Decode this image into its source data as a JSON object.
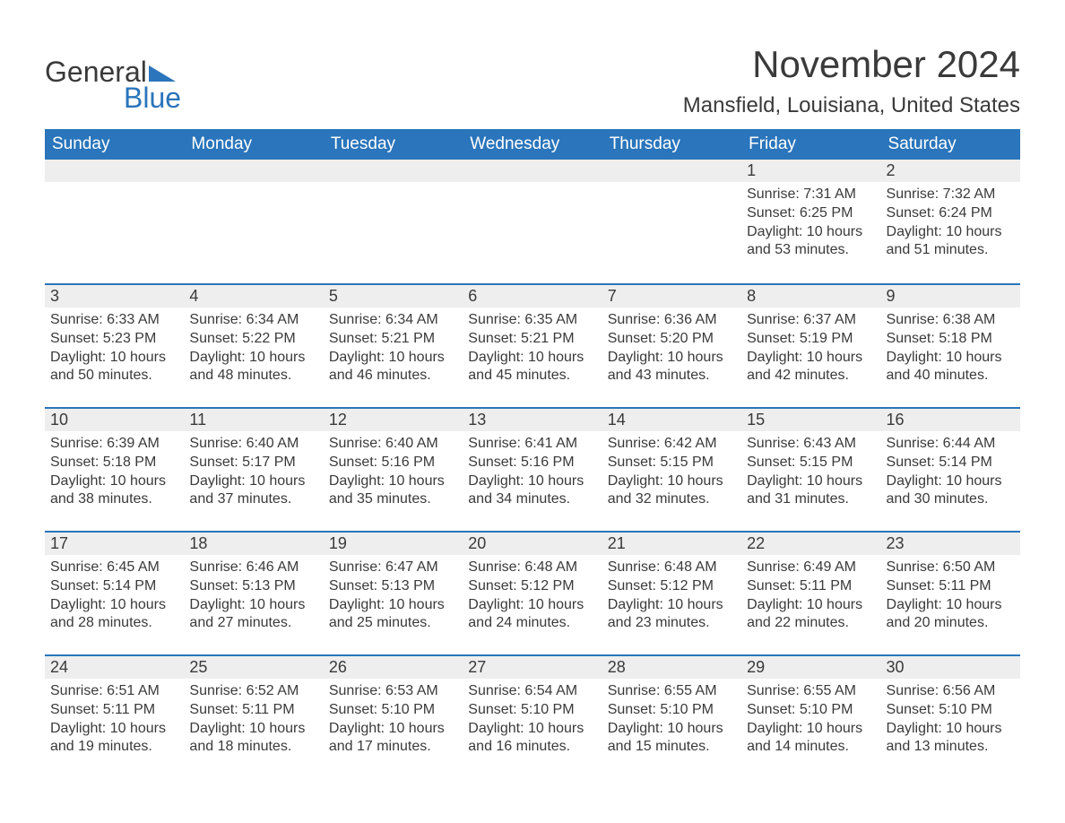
{
  "logo": {
    "general": "General",
    "blue": "Blue"
  },
  "month_title": "November 2024",
  "location": "Mansfield, Louisiana, United States",
  "colors": {
    "header_bg": "#2a75bb",
    "header_text": "#ffffff",
    "daynum_bg": "#eeeeee",
    "daynum_border": "#2a75bb",
    "text": "#3a3a3a",
    "page_bg": "#ffffff"
  },
  "day_headers": [
    "Sunday",
    "Monday",
    "Tuesday",
    "Wednesday",
    "Thursday",
    "Friday",
    "Saturday"
  ],
  "weeks": [
    [
      null,
      null,
      null,
      null,
      null,
      {
        "n": "1",
        "sunrise": "Sunrise: 7:31 AM",
        "sunset": "Sunset: 6:25 PM",
        "daylight": "Daylight: 10 hours and 53 minutes."
      },
      {
        "n": "2",
        "sunrise": "Sunrise: 7:32 AM",
        "sunset": "Sunset: 6:24 PM",
        "daylight": "Daylight: 10 hours and 51 minutes."
      }
    ],
    [
      {
        "n": "3",
        "sunrise": "Sunrise: 6:33 AM",
        "sunset": "Sunset: 5:23 PM",
        "daylight": "Daylight: 10 hours and 50 minutes."
      },
      {
        "n": "4",
        "sunrise": "Sunrise: 6:34 AM",
        "sunset": "Sunset: 5:22 PM",
        "daylight": "Daylight: 10 hours and 48 minutes."
      },
      {
        "n": "5",
        "sunrise": "Sunrise: 6:34 AM",
        "sunset": "Sunset: 5:21 PM",
        "daylight": "Daylight: 10 hours and 46 minutes."
      },
      {
        "n": "6",
        "sunrise": "Sunrise: 6:35 AM",
        "sunset": "Sunset: 5:21 PM",
        "daylight": "Daylight: 10 hours and 45 minutes."
      },
      {
        "n": "7",
        "sunrise": "Sunrise: 6:36 AM",
        "sunset": "Sunset: 5:20 PM",
        "daylight": "Daylight: 10 hours and 43 minutes."
      },
      {
        "n": "8",
        "sunrise": "Sunrise: 6:37 AM",
        "sunset": "Sunset: 5:19 PM",
        "daylight": "Daylight: 10 hours and 42 minutes."
      },
      {
        "n": "9",
        "sunrise": "Sunrise: 6:38 AM",
        "sunset": "Sunset: 5:18 PM",
        "daylight": "Daylight: 10 hours and 40 minutes."
      }
    ],
    [
      {
        "n": "10",
        "sunrise": "Sunrise: 6:39 AM",
        "sunset": "Sunset: 5:18 PM",
        "daylight": "Daylight: 10 hours and 38 minutes."
      },
      {
        "n": "11",
        "sunrise": "Sunrise: 6:40 AM",
        "sunset": "Sunset: 5:17 PM",
        "daylight": "Daylight: 10 hours and 37 minutes."
      },
      {
        "n": "12",
        "sunrise": "Sunrise: 6:40 AM",
        "sunset": "Sunset: 5:16 PM",
        "daylight": "Daylight: 10 hours and 35 minutes."
      },
      {
        "n": "13",
        "sunrise": "Sunrise: 6:41 AM",
        "sunset": "Sunset: 5:16 PM",
        "daylight": "Daylight: 10 hours and 34 minutes."
      },
      {
        "n": "14",
        "sunrise": "Sunrise: 6:42 AM",
        "sunset": "Sunset: 5:15 PM",
        "daylight": "Daylight: 10 hours and 32 minutes."
      },
      {
        "n": "15",
        "sunrise": "Sunrise: 6:43 AM",
        "sunset": "Sunset: 5:15 PM",
        "daylight": "Daylight: 10 hours and 31 minutes."
      },
      {
        "n": "16",
        "sunrise": "Sunrise: 6:44 AM",
        "sunset": "Sunset: 5:14 PM",
        "daylight": "Daylight: 10 hours and 30 minutes."
      }
    ],
    [
      {
        "n": "17",
        "sunrise": "Sunrise: 6:45 AM",
        "sunset": "Sunset: 5:14 PM",
        "daylight": "Daylight: 10 hours and 28 minutes."
      },
      {
        "n": "18",
        "sunrise": "Sunrise: 6:46 AM",
        "sunset": "Sunset: 5:13 PM",
        "daylight": "Daylight: 10 hours and 27 minutes."
      },
      {
        "n": "19",
        "sunrise": "Sunrise: 6:47 AM",
        "sunset": "Sunset: 5:13 PM",
        "daylight": "Daylight: 10 hours and 25 minutes."
      },
      {
        "n": "20",
        "sunrise": "Sunrise: 6:48 AM",
        "sunset": "Sunset: 5:12 PM",
        "daylight": "Daylight: 10 hours and 24 minutes."
      },
      {
        "n": "21",
        "sunrise": "Sunrise: 6:48 AM",
        "sunset": "Sunset: 5:12 PM",
        "daylight": "Daylight: 10 hours and 23 minutes."
      },
      {
        "n": "22",
        "sunrise": "Sunrise: 6:49 AM",
        "sunset": "Sunset: 5:11 PM",
        "daylight": "Daylight: 10 hours and 22 minutes."
      },
      {
        "n": "23",
        "sunrise": "Sunrise: 6:50 AM",
        "sunset": "Sunset: 5:11 PM",
        "daylight": "Daylight: 10 hours and 20 minutes."
      }
    ],
    [
      {
        "n": "24",
        "sunrise": "Sunrise: 6:51 AM",
        "sunset": "Sunset: 5:11 PM",
        "daylight": "Daylight: 10 hours and 19 minutes."
      },
      {
        "n": "25",
        "sunrise": "Sunrise: 6:52 AM",
        "sunset": "Sunset: 5:11 PM",
        "daylight": "Daylight: 10 hours and 18 minutes."
      },
      {
        "n": "26",
        "sunrise": "Sunrise: 6:53 AM",
        "sunset": "Sunset: 5:10 PM",
        "daylight": "Daylight: 10 hours and 17 minutes."
      },
      {
        "n": "27",
        "sunrise": "Sunrise: 6:54 AM",
        "sunset": "Sunset: 5:10 PM",
        "daylight": "Daylight: 10 hours and 16 minutes."
      },
      {
        "n": "28",
        "sunrise": "Sunrise: 6:55 AM",
        "sunset": "Sunset: 5:10 PM",
        "daylight": "Daylight: 10 hours and 15 minutes."
      },
      {
        "n": "29",
        "sunrise": "Sunrise: 6:55 AM",
        "sunset": "Sunset: 5:10 PM",
        "daylight": "Daylight: 10 hours and 14 minutes."
      },
      {
        "n": "30",
        "sunrise": "Sunrise: 6:56 AM",
        "sunset": "Sunset: 5:10 PM",
        "daylight": "Daylight: 10 hours and 13 minutes."
      }
    ]
  ]
}
